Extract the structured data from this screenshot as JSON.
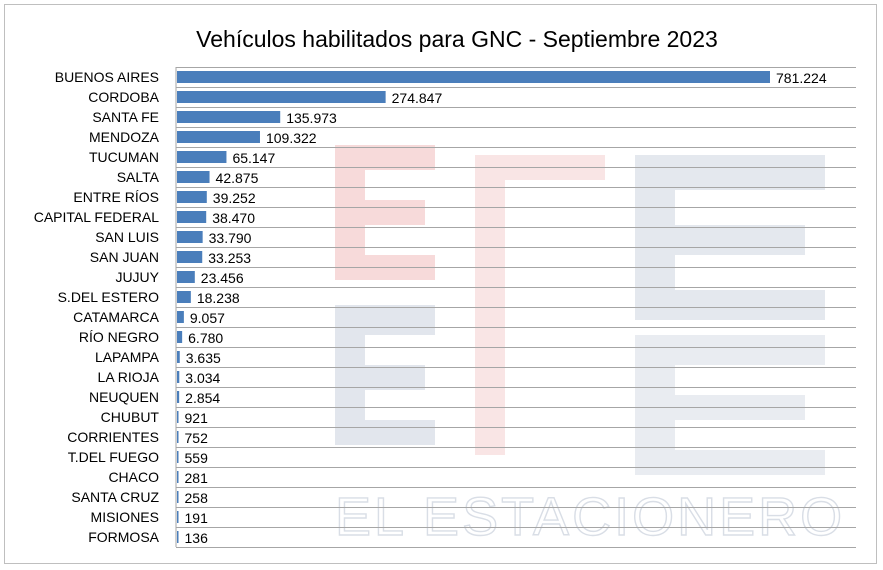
{
  "chart_data": {
    "type": "bar",
    "orientation": "horizontal",
    "title": "Vehículos habilitados para GNC - Septiembre 2023",
    "categories": [
      "BUENOS AIRES",
      "CORDOBA",
      "SANTA FE",
      "MENDOZA",
      "TUCUMAN",
      "SALTA",
      "ENTRE RÍOS",
      "CAPITAL FEDERAL",
      "SAN LUIS",
      "SAN JUAN",
      "JUJUY",
      "S.DEL ESTERO",
      "CATAMARCA",
      "RÍO NEGRO",
      "LAPAMPA",
      "LA RIOJA",
      "NEUQUEN",
      "CHUBUT",
      "CORRIENTES",
      "T.DEL FUEGO",
      "CHACO",
      "SANTA CRUZ",
      "MISIONES",
      "FORMOSA"
    ],
    "values": [
      781224,
      274847,
      135973,
      109322,
      65147,
      42875,
      39252,
      38470,
      33790,
      33253,
      23456,
      18238,
      9057,
      6780,
      3635,
      3034,
      2854,
      921,
      752,
      559,
      281,
      258,
      191,
      136
    ],
    "data_labels": [
      "781.224",
      "274.847",
      "135.973",
      "109.322",
      "65.147",
      "42.875",
      "39.252",
      "38.470",
      "33.790",
      "33.253",
      "23.456",
      "18.238",
      "9.057",
      "6.780",
      "3.635",
      "3.034",
      "2.854",
      "921",
      "752",
      "559",
      "281",
      "258",
      "191",
      "136"
    ],
    "xlim": [
      0,
      781224
    ],
    "grid": true,
    "legend": "none",
    "bar_color": "#4a7ebb"
  },
  "watermark": {
    "text": "EL ESTACIONERO",
    "colors": [
      "#f4cccc",
      "#d9dee6"
    ]
  }
}
